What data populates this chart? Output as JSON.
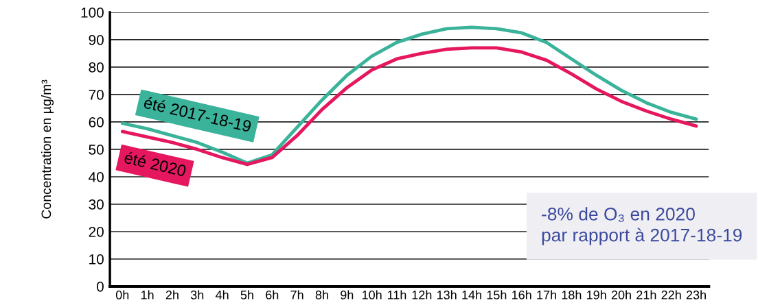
{
  "chart_data": {
    "type": "line",
    "ylabel": "Concentration en µg/m³",
    "categories": [
      "0h",
      "1h",
      "2h",
      "3h",
      "4h",
      "5h",
      "6h",
      "7h",
      "8h",
      "9h",
      "10h",
      "11h",
      "12h",
      "13h",
      "14h",
      "15h",
      "16h",
      "17h",
      "18h",
      "19h",
      "20h",
      "21h",
      "22h",
      "23h"
    ],
    "series": [
      {
        "name": "été 2017-18-19",
        "color": "#3bb39b",
        "values": [
          59.5,
          57.5,
          55,
          52.5,
          49,
          45,
          48,
          58,
          68,
          77,
          84,
          89,
          92,
          94,
          94.5,
          94,
          92.5,
          89,
          83,
          77,
          71.5,
          67,
          63.5,
          61
        ]
      },
      {
        "name": "été 2020",
        "color": "#e5175f",
        "values": [
          56.5,
          54.5,
          52.5,
          50,
          47,
          44.5,
          47,
          55,
          64.5,
          72.5,
          79,
          83,
          85,
          86.5,
          87,
          87,
          85.5,
          82.5,
          77.5,
          72,
          67.5,
          64,
          61,
          58.5
        ]
      }
    ],
    "ylim": [
      0,
      100
    ],
    "yticks": [
      0,
      10,
      20,
      30,
      40,
      50,
      60,
      70,
      80,
      90,
      100
    ],
    "grid": "y",
    "legend": false,
    "marker": "none",
    "line_style": "solid",
    "annotations": [
      "-8% de O₃ en 2020\npar rapport à 2017-18-19"
    ]
  }
}
